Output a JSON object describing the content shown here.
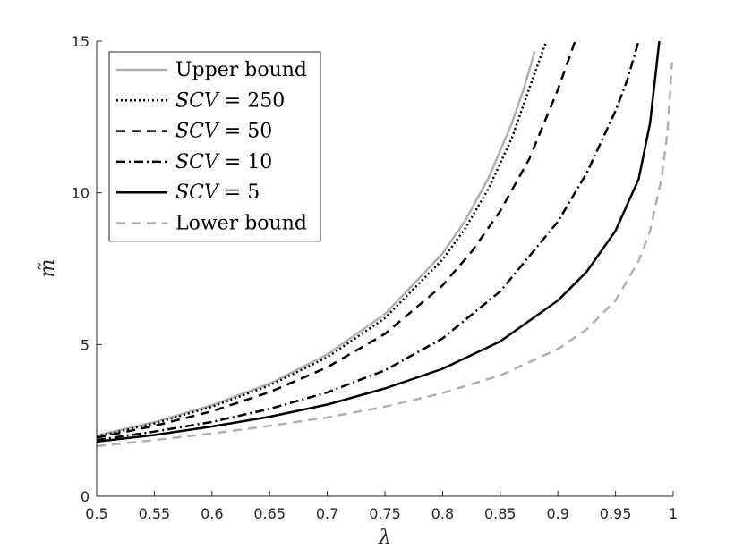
{
  "chart_data": {
    "type": "line",
    "title": "",
    "xlabel": "λ",
    "ylabel": "m̃",
    "xlim": [
      0.5,
      1
    ],
    "ylim": [
      0,
      15
    ],
    "xticks": [
      0.5,
      0.55,
      0.6,
      0.65,
      0.7,
      0.75,
      0.8,
      0.85,
      0.9,
      0.95,
      1
    ],
    "xtick_labels": [
      "0.5",
      "0.55",
      "0.6",
      "0.65",
      "0.7",
      "0.75",
      "0.8",
      "0.85",
      "0.9",
      "0.95",
      "1"
    ],
    "yticks": [
      0,
      5,
      10,
      15
    ],
    "ytick_labels": [
      "0",
      "5",
      "10",
      "15"
    ],
    "grid": false,
    "legend_position": "top-left",
    "series": [
      {
        "name": "Upper bound",
        "legend": {
          "text": "Upper bound",
          "math": false
        },
        "color": "#b0b0b0",
        "dash": "solid",
        "x": [
          0.5,
          0.55,
          0.6,
          0.65,
          0.7,
          0.75,
          0.8,
          0.82,
          0.84,
          0.86,
          0.87,
          0.88
        ],
        "y": [
          2.0,
          2.44,
          3.0,
          3.71,
          4.67,
          6.0,
          8.0,
          9.11,
          10.5,
          12.29,
          13.38,
          14.67
        ]
      },
      {
        "name": "SCV = 250",
        "legend": {
          "text": "SCV",
          "math": true,
          "suffix": " = 250"
        },
        "color": "#000000",
        "dash": "dotted",
        "x": [
          0.5,
          0.55,
          0.6,
          0.65,
          0.7,
          0.75,
          0.8,
          0.82,
          0.84,
          0.86,
          0.88,
          0.89
        ],
        "y": [
          1.97,
          2.4,
          2.95,
          3.65,
          4.58,
          5.87,
          7.8,
          8.85,
          10.15,
          11.8,
          13.95,
          15.0
        ]
      },
      {
        "name": "SCV = 50",
        "legend": {
          "text": "SCV",
          "math": true,
          "suffix": " = 50"
        },
        "color": "#000000",
        "dash": "dashed",
        "x": [
          0.5,
          0.55,
          0.6,
          0.65,
          0.7,
          0.75,
          0.8,
          0.825,
          0.85,
          0.875,
          0.9,
          0.915
        ],
        "y": [
          1.93,
          2.32,
          2.8,
          3.43,
          4.25,
          5.35,
          6.95,
          8.05,
          9.4,
          11.1,
          13.4,
          15.0
        ]
      },
      {
        "name": "SCV = 10",
        "legend": {
          "text": "SCV",
          "math": true,
          "suffix": " = 10"
        },
        "color": "#000000",
        "dash": "dashdot",
        "x": [
          0.5,
          0.55,
          0.6,
          0.65,
          0.7,
          0.75,
          0.8,
          0.85,
          0.9,
          0.925,
          0.95,
          0.96,
          0.97
        ],
        "y": [
          1.85,
          2.13,
          2.45,
          2.88,
          3.42,
          4.15,
          5.2,
          6.75,
          9.05,
          10.65,
          12.7,
          13.7,
          15.0
        ]
      },
      {
        "name": "SCV = 5",
        "legend": {
          "text": "SCV",
          "math": true,
          "suffix": " = 5"
        },
        "color": "#000000",
        "dash": "solid",
        "x": [
          0.5,
          0.55,
          0.6,
          0.65,
          0.7,
          0.75,
          0.8,
          0.85,
          0.9,
          0.925,
          0.95,
          0.97,
          0.98,
          0.988
        ],
        "y": [
          1.8,
          2.02,
          2.3,
          2.62,
          3.02,
          3.55,
          4.2,
          5.1,
          6.45,
          7.4,
          8.75,
          10.45,
          12.3,
          15.0
        ]
      },
      {
        "name": "Lower bound",
        "legend": {
          "text": "Lower bound",
          "math": false
        },
        "color": "#b0b0b0",
        "dash": "dashed",
        "x": [
          0.5,
          0.55,
          0.6,
          0.65,
          0.7,
          0.75,
          0.8,
          0.85,
          0.9,
          0.925,
          0.95,
          0.97,
          0.98,
          0.99,
          0.995,
          0.999
        ],
        "y": [
          1.65,
          1.85,
          2.07,
          2.32,
          2.6,
          2.95,
          3.4,
          3.98,
          4.85,
          5.5,
          6.45,
          7.75,
          8.75,
          10.5,
          12.0,
          14.3
        ]
      }
    ]
  }
}
